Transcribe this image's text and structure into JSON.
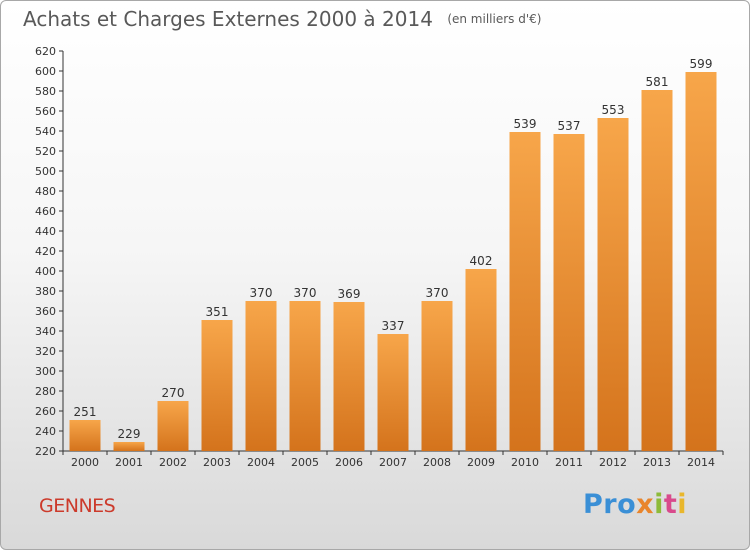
{
  "title": "Achats et Charges Externes 2000 à 2014",
  "unit_label": "(en milliers d'€)",
  "commune": "GENNES",
  "logo": {
    "parts": [
      "Pro",
      "x",
      "i",
      "t",
      "i"
    ]
  },
  "colors": {
    "bar_light": "#f7a64a",
    "bar_dark": "#d4731c",
    "title": "#595959",
    "commune": "#cc3a2b"
  },
  "chart_data": {
    "type": "bar",
    "categories": [
      "2000",
      "2001",
      "2002",
      "2003",
      "2004",
      "2005",
      "2006",
      "2007",
      "2008",
      "2009",
      "2010",
      "2011",
      "2012",
      "2013",
      "2014"
    ],
    "values": [
      251,
      229,
      270,
      351,
      370,
      370,
      369,
      337,
      370,
      402,
      539,
      537,
      553,
      581,
      599
    ],
    "ylim": [
      220,
      620
    ],
    "ytick_step": 20,
    "grid": false,
    "legend": "none",
    "data_labels": true
  }
}
